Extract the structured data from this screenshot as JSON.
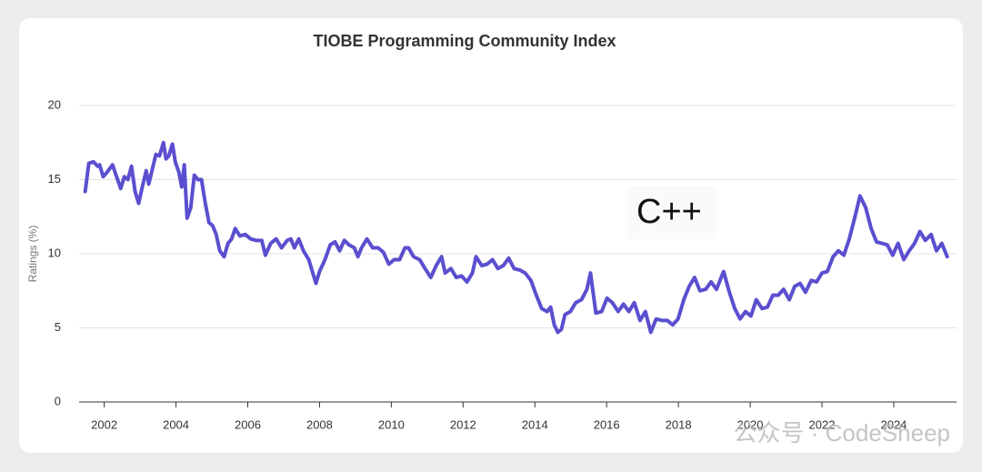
{
  "chart_data": {
    "type": "line",
    "title": "TIOBE Programming Community Index",
    "y_label": "Ratings (%)",
    "annotation": "C++",
    "watermark": "公众号 · CodeSheep",
    "xlim": [
      2001.3,
      2025.75
    ],
    "xticks": [
      2002,
      2004,
      2006,
      2008,
      2010,
      2012,
      2014,
      2016,
      2018,
      2020,
      2022,
      2024
    ],
    "ylim": [
      0,
      20
    ],
    "yticks": [
      0,
      5,
      10,
      15,
      20
    ],
    "grid": true,
    "x": [
      2001.47,
      2001.57,
      2001.7,
      2001.82,
      2001.87,
      2001.97,
      2002.08,
      2002.23,
      2002.33,
      2002.46,
      2002.56,
      2002.66,
      2002.76,
      2002.86,
      2002.96,
      2003.06,
      2003.17,
      2003.24,
      2003.34,
      2003.44,
      2003.54,
      2003.65,
      2003.72,
      2003.8,
      2003.9,
      2003.98,
      2004.08,
      2004.16,
      2004.23,
      2004.31,
      2004.41,
      2004.51,
      2004.61,
      2004.71,
      2004.81,
      2004.92,
      2005.02,
      2005.12,
      2005.22,
      2005.34,
      2005.45,
      2005.55,
      2005.65,
      2005.78,
      2005.93,
      2006.08,
      2006.23,
      2006.39,
      2006.49,
      2006.64,
      2006.79,
      2006.94,
      2007.1,
      2007.2,
      2007.3,
      2007.42,
      2007.55,
      2007.7,
      2007.8,
      2007.9,
      2008.0,
      2008.15,
      2008.3,
      2008.43,
      2008.56,
      2008.69,
      2008.82,
      2008.97,
      2009.07,
      2009.17,
      2009.32,
      2009.48,
      2009.63,
      2009.78,
      2009.93,
      2010.08,
      2010.23,
      2010.38,
      2010.48,
      2010.62,
      2010.79,
      2010.94,
      2011.1,
      2011.25,
      2011.4,
      2011.5,
      2011.66,
      2011.81,
      2011.96,
      2012.11,
      2012.26,
      2012.36,
      2012.52,
      2012.67,
      2012.82,
      2012.97,
      2013.12,
      2013.27,
      2013.42,
      2013.58,
      2013.73,
      2013.89,
      2014.04,
      2014.19,
      2014.34,
      2014.44,
      2014.54,
      2014.64,
      2014.74,
      2014.84,
      2014.99,
      2015.14,
      2015.3,
      2015.45,
      2015.55,
      2015.7,
      2015.86,
      2016.01,
      2016.16,
      2016.32,
      2016.47,
      2016.62,
      2016.77,
      2016.93,
      2017.08,
      2017.23,
      2017.38,
      2017.54,
      2017.69,
      2017.84,
      2017.99,
      2018.15,
      2018.3,
      2018.45,
      2018.6,
      2018.76,
      2018.91,
      2019.06,
      2019.26,
      2019.42,
      2019.57,
      2019.72,
      2019.87,
      2020.02,
      2020.17,
      2020.33,
      2020.48,
      2020.63,
      2020.78,
      2020.93,
      2021.09,
      2021.24,
      2021.39,
      2021.54,
      2021.7,
      2021.85,
      2022.0,
      2022.15,
      2022.31,
      2022.46,
      2022.61,
      2022.76,
      2022.91,
      2023.06,
      2023.22,
      2023.37,
      2023.52,
      2023.67,
      2023.82,
      2023.97,
      2024.12,
      2024.28,
      2024.43,
      2024.58,
      2024.73,
      2024.88,
      2025.04,
      2025.19,
      2025.34,
      2025.49
    ],
    "series": [
      {
        "name": "C++",
        "color": "#5a4fcf",
        "values": [
          14.2,
          16.1,
          16.2,
          15.9,
          16.0,
          15.2,
          15.5,
          16.0,
          15.3,
          14.4,
          15.2,
          15.0,
          15.9,
          14.2,
          13.4,
          14.5,
          15.6,
          14.7,
          15.7,
          16.7,
          16.6,
          17.5,
          16.4,
          16.6,
          17.4,
          16.2,
          15.5,
          14.5,
          16.0,
          12.4,
          13.1,
          15.3,
          15.0,
          15.0,
          13.5,
          12.1,
          11.9,
          11.3,
          10.2,
          9.8,
          10.7,
          11.0,
          11.7,
          11.2,
          11.3,
          11.0,
          10.9,
          10.9,
          9.9,
          10.7,
          11.0,
          10.4,
          10.9,
          11.0,
          10.4,
          11.0,
          10.2,
          9.6,
          8.8,
          8.0,
          8.8,
          9.6,
          10.6,
          10.8,
          10.2,
          10.9,
          10.6,
          10.4,
          9.8,
          10.4,
          11.0,
          10.4,
          10.4,
          10.1,
          9.3,
          9.6,
          9.6,
          10.4,
          10.4,
          9.8,
          9.6,
          9.0,
          8.4,
          9.2,
          9.8,
          8.7,
          9.0,
          8.4,
          8.5,
          8.1,
          8.7,
          9.8,
          9.2,
          9.3,
          9.6,
          9.0,
          9.2,
          9.7,
          9.0,
          8.9,
          8.7,
          8.2,
          7.2,
          6.3,
          6.1,
          6.4,
          5.2,
          4.7,
          4.9,
          5.9,
          6.1,
          6.7,
          6.9,
          7.6,
          8.7,
          6.0,
          6.1,
          7.0,
          6.7,
          6.1,
          6.6,
          6.1,
          6.7,
          5.5,
          6.1,
          4.7,
          5.6,
          5.5,
          5.5,
          5.2,
          5.6,
          6.9,
          7.8,
          8.4,
          7.5,
          7.6,
          8.1,
          7.6,
          8.8,
          7.4,
          6.3,
          5.6,
          6.1,
          5.8,
          6.9,
          6.3,
          6.4,
          7.2,
          7.2,
          7.6,
          6.9,
          7.8,
          8.0,
          7.4,
          8.2,
          8.1,
          8.7,
          8.8,
          9.8,
          10.2,
          9.9,
          11.0,
          12.4,
          13.9,
          13.1,
          11.7,
          10.8,
          10.7,
          10.6,
          9.9,
          10.7,
          9.6,
          10.2,
          10.7,
          11.5,
          10.9,
          11.3,
          10.2,
          10.7,
          9.8
        ]
      }
    ]
  }
}
